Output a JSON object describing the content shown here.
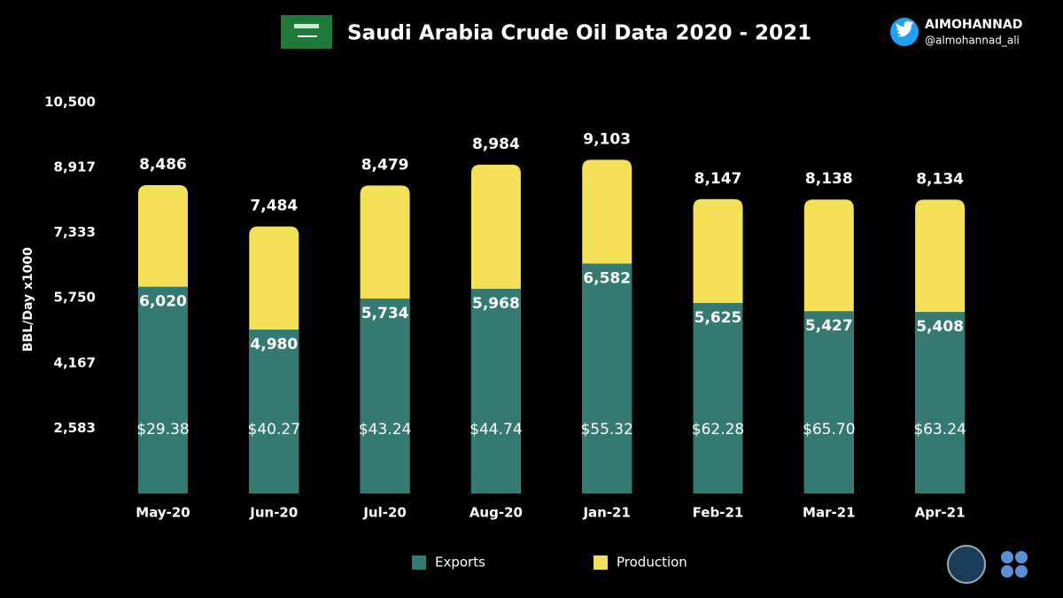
{
  "header": {
    "title": "Saudi Arabia Crude Oil Data 2020 - 2021",
    "author": "AIMOHANNAD",
    "handle": "@almohannad_ali"
  },
  "chart_data": {
    "type": "bar",
    "overlap": true,
    "y_label": "BBL/Day x1000",
    "categories": [
      "May-20",
      "Jun-20",
      "Jul-20",
      "Aug-20",
      "Jan-21",
      "Feb-21",
      "Mar-21",
      "Apr-21"
    ],
    "series": [
      {
        "name": "Production",
        "color": "#f5e05a",
        "values": [
          8486,
          7484,
          8479,
          8984,
          9103,
          8147,
          8138,
          8134
        ],
        "value_labels": [
          "8,486",
          "7,484",
          "8,479",
          "8,984",
          "9,103",
          "8,147",
          "8,138",
          "8,134"
        ]
      },
      {
        "name": "Exports",
        "color": "#357a72",
        "values": [
          6020,
          4980,
          5734,
          5968,
          6582,
          5625,
          5427,
          5408
        ],
        "value_labels": [
          "6,020",
          "4,980",
          "5,734",
          "5,968",
          "6,582",
          "5,625",
          "5,427",
          "5,408"
        ]
      }
    ],
    "price_labels": [
      "$29.38",
      "$40.27",
      "$43.24",
      "$44.74",
      "$55.32",
      "$62.28",
      "$65.70",
      "$63.24"
    ],
    "ylim": [
      1000,
      10500
    ],
    "yticks": [
      {
        "value": 2583,
        "label": "2,583"
      },
      {
        "value": 4167,
        "label": "4,167"
      },
      {
        "value": 5750,
        "label": "5,750"
      },
      {
        "value": 7333,
        "label": "7,333"
      },
      {
        "value": 8917,
        "label": "8,917"
      },
      {
        "value": 10500,
        "label": "10,500"
      }
    ],
    "legend_order": [
      "Exports",
      "Production"
    ]
  }
}
